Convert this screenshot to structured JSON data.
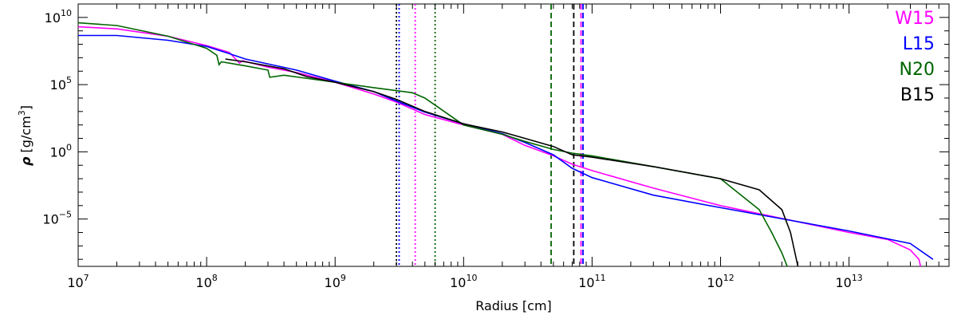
{
  "chart_data": {
    "type": "line",
    "title": "",
    "xlabel": "Radius [cm]",
    "ylabel": {
      "symbol": "ρ",
      "prefix": " [g/cm",
      "power": "3",
      "suffix": "]"
    },
    "x_scale": "log",
    "y_scale": "log",
    "xlim": [
      10000000.0,
      60000000000000.0
    ],
    "ylim": [
      3e-09,
      100000000000.0
    ],
    "x_ticks": [
      {
        "base": "10",
        "exp": "7",
        "value": 10000000.0
      },
      {
        "base": "10",
        "exp": "8",
        "value": 100000000.0
      },
      {
        "base": "10",
        "exp": "9",
        "value": 1000000000.0
      },
      {
        "base": "10",
        "exp": "10",
        "value": 10000000000.0
      },
      {
        "base": "10",
        "exp": "11",
        "value": 100000000000.0
      },
      {
        "base": "10",
        "exp": "12",
        "value": 1000000000000.0
      },
      {
        "base": "10",
        "exp": "13",
        "value": 10000000000000.0
      }
    ],
    "y_ticks": [
      {
        "base": "10",
        "exp": "−5",
        "value": 1e-05
      },
      {
        "base": "10",
        "exp": "0",
        "value": 1
      },
      {
        "base": "10",
        "exp": "5",
        "value": 100000.0
      },
      {
        "base": "10",
        "exp": "10",
        "value": 10000000000.0
      }
    ],
    "grid": false,
    "legend": {
      "position": "top-right"
    },
    "series": [
      {
        "name": "W15",
        "color": "#ff00ff",
        "points": [
          [
            10000000.0,
            2000000000.0
          ],
          [
            20000000.0,
            1400000000.0
          ],
          [
            50000000.0,
            400000000.0
          ],
          [
            100000000.0,
            80000000.0
          ],
          [
            150000000.0,
            25000000.0
          ],
          [
            180000000.0,
            4000000.0
          ],
          [
            190000000.0,
            6000000.0
          ],
          [
            300000000.0,
            2000000.0
          ],
          [
            500000000.0,
            800000.0
          ],
          [
            1000000000.0,
            150000.0
          ],
          [
            2000000000.0,
            20000.0
          ],
          [
            3000000000.0,
            5000.0
          ],
          [
            5000000000.0,
            600.0
          ],
          [
            10000000000.0,
            100.0
          ],
          [
            20000000000.0,
            20.0
          ],
          [
            30000000000.0,
            3
          ],
          [
            50000000000.0,
            0.5
          ],
          [
            70000000000.0,
            0.12
          ],
          [
            100000000000.0,
            0.04
          ],
          [
            300000000000.0,
            0.002
          ],
          [
            1000000000000.0,
            0.0001
          ],
          [
            10000000000000.0,
            1e-06
          ],
          [
            20000000000000.0,
            3e-07
          ],
          [
            30000000000000.0,
            5e-08
          ],
          [
            35000000000000.0,
            1e-08
          ],
          [
            36000000000000.0,
            3e-09
          ]
        ]
      },
      {
        "name": "L15",
        "color": "#0000ff",
        "points": [
          [
            10000000.0,
            450000000.0
          ],
          [
            20000000.0,
            450000000.0
          ],
          [
            50000000.0,
            200000000.0
          ],
          [
            100000000.0,
            70000000.0
          ],
          [
            150000000.0,
            20000000.0
          ],
          [
            200000000.0,
            8000000.0
          ],
          [
            500000000.0,
            1200000.0
          ],
          [
            1000000000.0,
            180000.0
          ],
          [
            2000000000.0,
            30000.0
          ],
          [
            3000000000.0,
            6000.0
          ],
          [
            5000000000.0,
            900.0
          ],
          [
            10000000000.0,
            120.0
          ],
          [
            20000000000.0,
            22.0
          ],
          [
            30000000000.0,
            5
          ],
          [
            50000000000.0,
            0.6
          ],
          [
            70000000000.0,
            0.06
          ],
          [
            100000000000.0,
            0.012
          ],
          [
            300000000000.0,
            0.0006
          ],
          [
            1000000000000.0,
            7e-05
          ],
          [
            10000000000000.0,
            1.3e-06
          ],
          [
            30000000000000.0,
            1.5e-07
          ],
          [
            45000000000000.0,
            1e-08
          ]
        ]
      },
      {
        "name": "N20",
        "color": "#006400",
        "points": [
          [
            10000000.0,
            4000000000.0
          ],
          [
            20000000.0,
            2500000000.0
          ],
          [
            50000000.0,
            400000000.0
          ],
          [
            100000000.0,
            50000000.0
          ],
          [
            120000000.0,
            15000000.0
          ],
          [
            125000000.0,
            3000000.0
          ],
          [
            130000000.0,
            5000000.0
          ],
          [
            200000000.0,
            2500000.0
          ],
          [
            300000000.0,
            1200000.0
          ],
          [
            310000000.0,
            350000.0
          ],
          [
            400000000.0,
            500000.0
          ],
          [
            800000000.0,
            200000.0
          ],
          [
            2000000000.0,
            60000.0
          ],
          [
            4000000000.0,
            25000.0
          ],
          [
            5000000000.0,
            10000.0
          ],
          [
            6000000000.0,
            3000.0
          ],
          [
            10000000000.0,
            100.0
          ],
          [
            20000000000.0,
            20.0
          ],
          [
            30000000000.0,
            6
          ],
          [
            50000000000.0,
            1.5
          ],
          [
            70000000000.0,
            0.8
          ],
          [
            100000000000.0,
            0.5
          ],
          [
            300000000000.0,
            0.08
          ],
          [
            1000000000000.0,
            0.01
          ],
          [
            2000000000000.0,
            5e-05
          ],
          [
            2500000000000.0,
            1e-06
          ],
          [
            3000000000000.0,
            3e-08
          ],
          [
            3300000000000.0,
            3e-09
          ]
        ]
      },
      {
        "name": "B15",
        "color": "#000000",
        "points": [
          [
            140000000.0,
            8000000.0
          ],
          [
            200000000.0,
            5000000.0
          ],
          [
            400000000.0,
            1500000.0
          ],
          [
            600000000.0,
            400000.0
          ],
          [
            1000000000.0,
            150000.0
          ],
          [
            2000000000.0,
            30000.0
          ],
          [
            3000000000.0,
            8000.0
          ],
          [
            5000000000.0,
            1000.0
          ],
          [
            10000000000.0,
            120.0
          ],
          [
            20000000000.0,
            30.0
          ],
          [
            30000000000.0,
            10.0
          ],
          [
            50000000000.0,
            2.5
          ],
          [
            70000000000.0,
            0.6
          ],
          [
            100000000000.0,
            0.4
          ],
          [
            300000000000.0,
            0.08
          ],
          [
            1000000000000.0,
            0.01
          ],
          [
            2000000000000.0,
            0.0015
          ],
          [
            3000000000000.0,
            5e-05
          ],
          [
            3500000000000.0,
            1e-06
          ],
          [
            4000000000000.0,
            3e-09
          ]
        ]
      }
    ],
    "vertical_lines": [
      {
        "x": 3000000000.0,
        "color": "#000000",
        "style": "dotted"
      },
      {
        "x": 3150000000.0,
        "color": "#0000ff",
        "style": "dotted"
      },
      {
        "x": 4200000000.0,
        "color": "#ff00ff",
        "style": "dotted"
      },
      {
        "x": 6000000000.0,
        "color": "#006400",
        "style": "dotted"
      },
      {
        "x": 48000000000.0,
        "color": "#006400",
        "style": "dashed"
      },
      {
        "x": 72000000000.0,
        "color": "#000000",
        "style": "dashed"
      },
      {
        "x": 82000000000.0,
        "color": "#ff00ff",
        "style": "dashed"
      },
      {
        "x": 85000000000.0,
        "color": "#0000ff",
        "style": "dashed"
      }
    ]
  }
}
